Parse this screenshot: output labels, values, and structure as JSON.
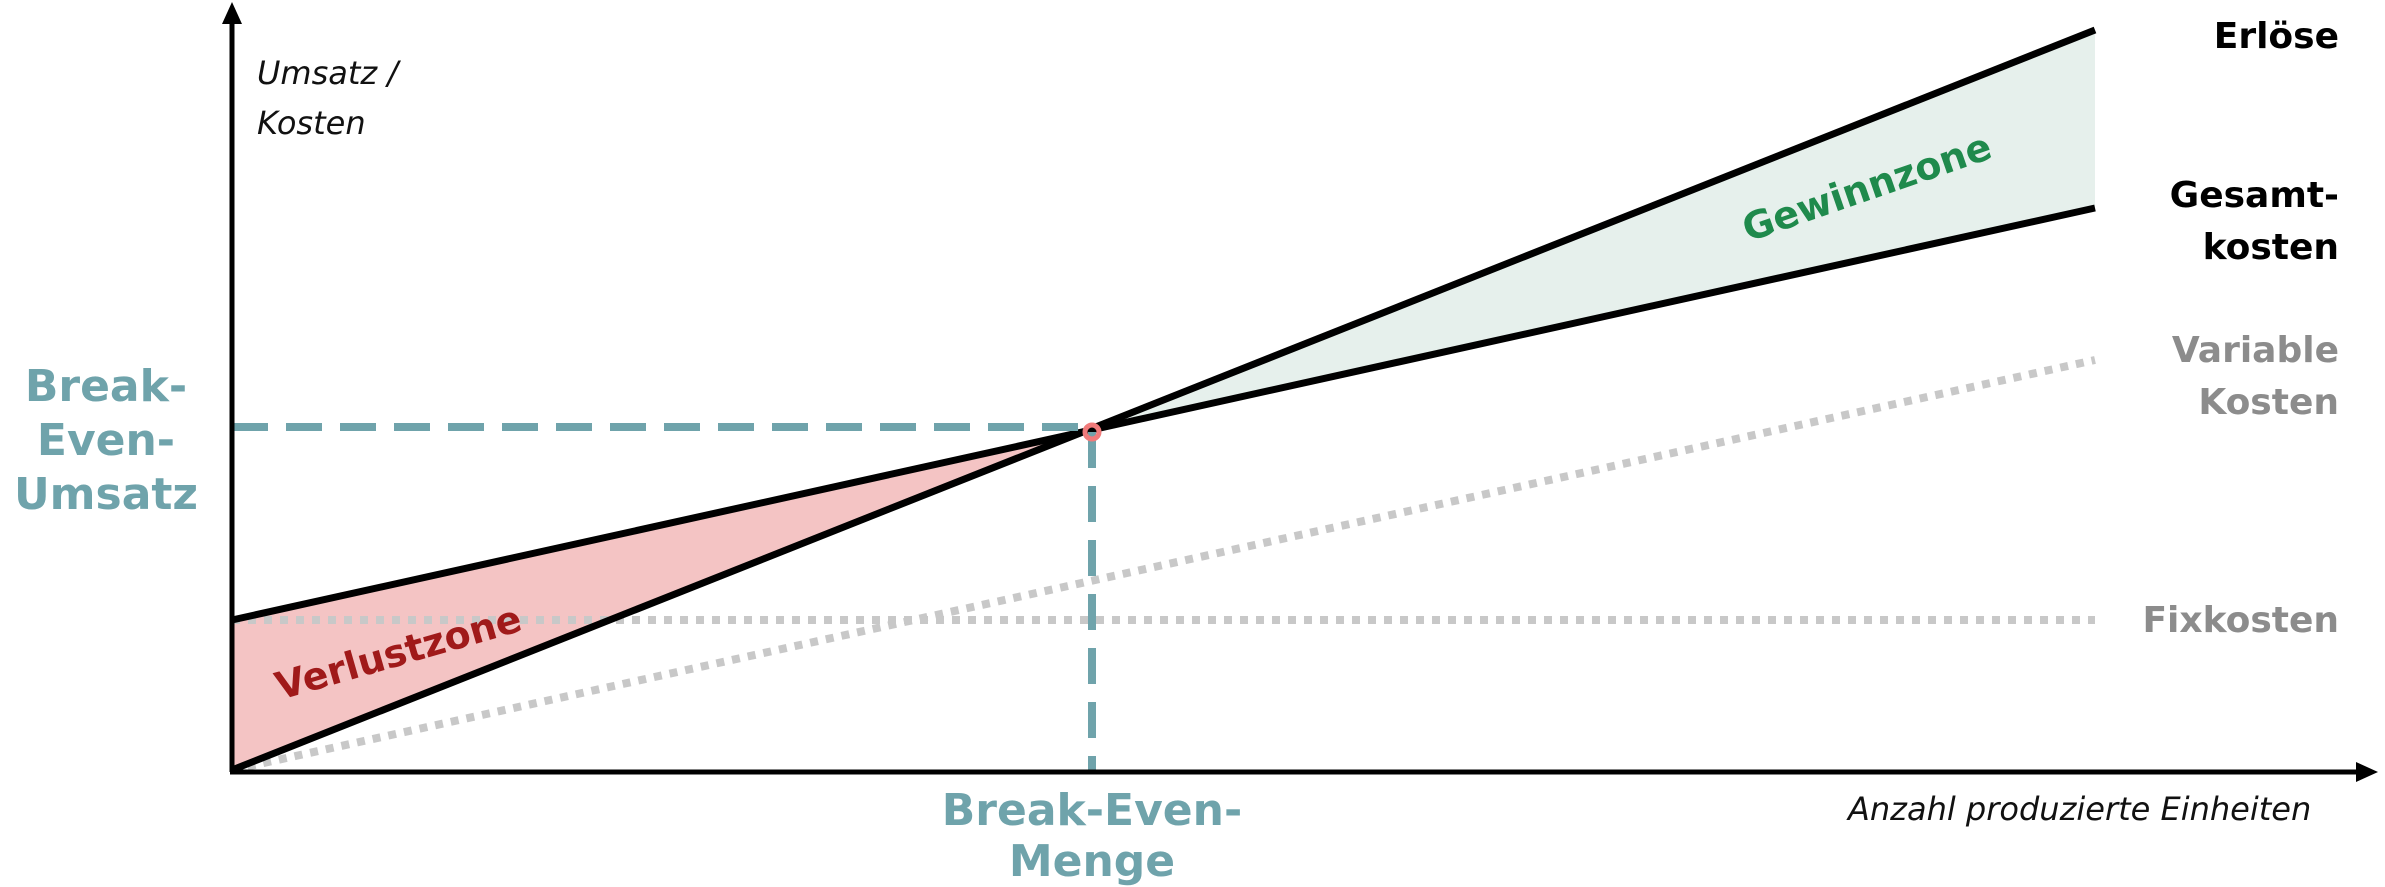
{
  "axes": {
    "y_title_line1": "Umsatz /",
    "y_title_line2": "Kosten",
    "x_title": "Anzahl produzierte Einheiten"
  },
  "lines": {
    "erloese": "Erlöse",
    "gesamtkosten_line1": "Gesamt-",
    "gesamtkosten_line2": "kosten",
    "variable_line1": "Variable",
    "variable_line2": "Kosten",
    "fixkosten": "Fixkosten"
  },
  "zones": {
    "profit": "Gewinnzone",
    "loss": "Verlustzone"
  },
  "break_even": {
    "revenue_line1": "Break-",
    "revenue_line2": "Even-",
    "revenue_line3": "Umsatz",
    "quantity": "Break-Even-Menge"
  },
  "colors": {
    "axis": "#000000",
    "revenue_line": "#000000",
    "total_cost_line": "#000000",
    "variable_cost_line": "#c8c8c8",
    "fixed_cost_line": "#c8c8c8",
    "break_even_guides": "#6fa3ab",
    "break_even_point": "#f07b7b",
    "profit_fill": "#e6f0ec",
    "loss_fill": "#f4c4c4",
    "profit_text": "#1f8a4c",
    "loss_text": "#a01a1a",
    "label_gray": "#8c8c8c"
  }
}
